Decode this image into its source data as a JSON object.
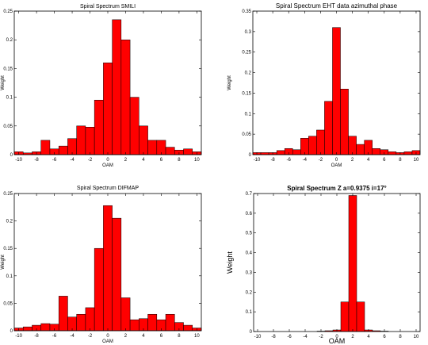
{
  "chart_data": [
    {
      "type": "bar",
      "title": "Spiral Spectrum SMILI",
      "xlabel": "OAM",
      "ylabel": "Weight",
      "xlim": [
        -10.5,
        10.5
      ],
      "ylim": [
        0,
        0.25
      ],
      "xticks": [
        "-10",
        "-8",
        "-6",
        "-4",
        "-2",
        "0",
        "2",
        "4",
        "6",
        "8",
        "10"
      ],
      "yticks": [
        "0",
        "0.05",
        "0.1",
        "0.15",
        "0.2",
        "0.25"
      ],
      "color": "#ff0000",
      "categories": [
        -10,
        -9,
        -8,
        -7,
        -6,
        -5,
        -4,
        -3,
        -2,
        -1,
        0,
        1,
        2,
        3,
        4,
        5,
        6,
        7,
        8,
        9,
        10
      ],
      "values": [
        0.005,
        0.003,
        0.005,
        0.025,
        0.01,
        0.015,
        0.028,
        0.05,
        0.048,
        0.095,
        0.16,
        0.235,
        0.2,
        0.1,
        0.05,
        0.025,
        0.025,
        0.013,
        0.008,
        0.01,
        0.005
      ]
    },
    {
      "type": "bar",
      "title": "Spiral Spectrum EHT data azimuthal phase",
      "xlabel": "OAM",
      "ylabel": "Weight",
      "xlim": [
        -10.5,
        10.5
      ],
      "ylim": [
        0,
        0.35
      ],
      "xticks": [
        "-10",
        "-8",
        "-6",
        "-4",
        "-2",
        "0",
        "2",
        "4",
        "6",
        "8",
        "10"
      ],
      "yticks": [
        "0",
        "0.05",
        "0.1",
        "0.15",
        "0.2",
        "0.25",
        "0.3",
        "0.35"
      ],
      "color": "#ff0000",
      "categories": [
        -10,
        -9,
        -8,
        -7,
        -6,
        -5,
        -4,
        -3,
        -2,
        -1,
        0,
        1,
        2,
        3,
        4,
        5,
        6,
        7,
        8,
        9,
        10
      ],
      "values": [
        0.005,
        0.005,
        0.005,
        0.01,
        0.015,
        0.012,
        0.04,
        0.045,
        0.06,
        0.13,
        0.31,
        0.16,
        0.045,
        0.025,
        0.035,
        0.015,
        0.012,
        0.007,
        0.005,
        0.007,
        0.01
      ]
    },
    {
      "type": "bar",
      "title": "Spiral Spectrum DIFMAP",
      "xlabel": "OAM",
      "ylabel": "Weight",
      "xlim": [
        -10.5,
        10.5
      ],
      "ylim": [
        0,
        0.25
      ],
      "xticks": [
        "-10",
        "-8",
        "-6",
        "-4",
        "-2",
        "0",
        "2",
        "4",
        "6",
        "8",
        "10"
      ],
      "yticks": [
        "0",
        "0.05",
        "0.1",
        "0.15",
        "0.2",
        "0.25"
      ],
      "color": "#ff0000",
      "categories": [
        -10,
        -9,
        -8,
        -7,
        -6,
        -5,
        -4,
        -3,
        -2,
        -1,
        0,
        1,
        2,
        3,
        4,
        5,
        6,
        7,
        8,
        9,
        10
      ],
      "values": [
        0.005,
        0.007,
        0.01,
        0.013,
        0.012,
        0.063,
        0.025,
        0.03,
        0.042,
        0.15,
        0.228,
        0.205,
        0.06,
        0.02,
        0.022,
        0.03,
        0.02,
        0.03,
        0.015,
        0.01,
        0.005
      ]
    },
    {
      "type": "bar",
      "title": "Spiral Spectrum Z a=0.9375 i=17°",
      "xlabel": "OAM",
      "ylabel": "Weight",
      "xlim": [
        -10.5,
        10.5
      ],
      "ylim": [
        0,
        0.7
      ],
      "xticks": [
        "-10",
        "-8",
        "-6",
        "-4",
        "-2",
        "0",
        "2",
        "4",
        "6",
        "8",
        "10"
      ],
      "yticks": [
        "0",
        "0.1",
        "0.2",
        "0.3",
        "0.4",
        "0.5",
        "0.6",
        "0.7"
      ],
      "color": "#ff0000",
      "categories": [
        -10,
        -9,
        -8,
        -7,
        -6,
        -5,
        -4,
        -3,
        -2,
        -1,
        0,
        1,
        2,
        3,
        4,
        5,
        6,
        7,
        8,
        9,
        10
      ],
      "values": [
        0,
        0,
        0,
        0,
        0,
        0,
        0,
        0,
        0.002,
        0.004,
        0.008,
        0.15,
        0.69,
        0.15,
        0.008,
        0.004,
        0.002,
        0,
        0,
        0,
        0
      ]
    }
  ]
}
